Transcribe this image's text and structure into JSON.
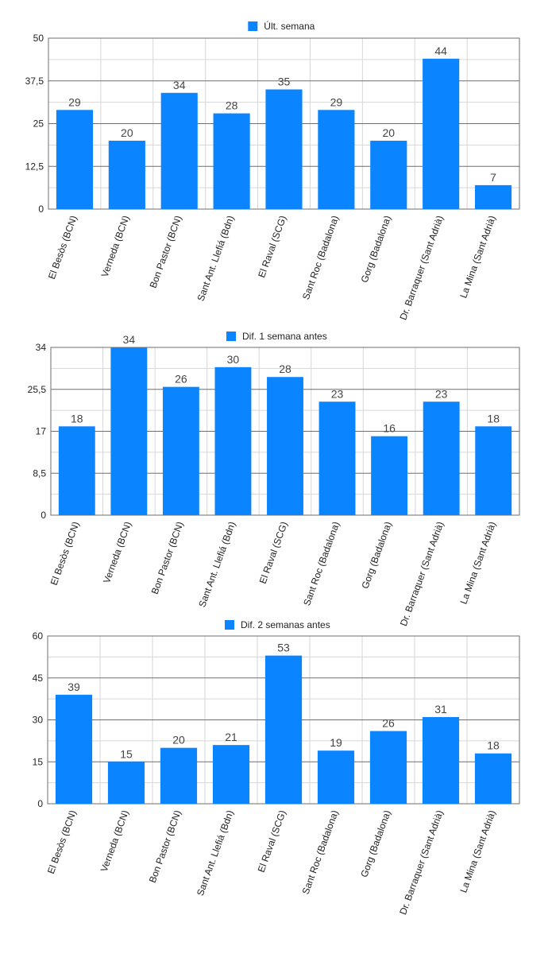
{
  "colors": {
    "bar": "#0a84ff",
    "legend": "#0a84ff",
    "grid_major": "#6e6e6e",
    "grid_minor": "#d6d6d6",
    "text": "#222222",
    "label": "#444444"
  },
  "chart_data": [
    {
      "type": "bar",
      "legend": "Últ. semana",
      "categories": [
        "El Besòs (BCN)",
        "Verneda (BCN)",
        "Bon Pastor (BCN)",
        "Sant Ant. Llefiá (Bdn)",
        "El Raval (SCG)",
        "Sant Roc (Badalona)",
        "Gorg (Badalona)",
        "Dr. Barraquer (Sant Adrià)",
        "La Mina (Sant Adrià)"
      ],
      "values": [
        29,
        20,
        34,
        28,
        35,
        29,
        20,
        44,
        7
      ],
      "yticks": [
        0,
        12.5,
        25,
        37.5,
        50
      ],
      "ytick_labels": [
        "0",
        "12,5",
        "25",
        "37,5",
        "50"
      ],
      "ylim": [
        0,
        50
      ],
      "legend_position": "top-center",
      "grid": true
    },
    {
      "type": "bar",
      "legend": "Dif.  1 semana antes",
      "categories": [
        "El Besòs (BCN)",
        "Verneda (BCN)",
        "Bon Pastor (BCN)",
        "Sant Ant. Llefiá (Bdn)",
        "El Raval (SCG)",
        "Sant Roc (Badalona)",
        "Gorg (Badalona)",
        "Dr. Barraquer (Sant Adrià)",
        "La Mina (Sant Adrià)"
      ],
      "values": [
        18,
        34,
        26,
        30,
        28,
        23,
        16,
        23,
        18
      ],
      "yticks": [
        0,
        8.5,
        17,
        25.5,
        34
      ],
      "ytick_labels": [
        "0",
        "8,5",
        "17",
        "25,5",
        "34"
      ],
      "ylim": [
        0,
        34
      ],
      "legend_position": "top-center",
      "grid": true
    },
    {
      "type": "bar",
      "legend": "Dif. 2 semanas antes",
      "categories": [
        "El Besòs (BCN)",
        "Verneda (BCN)",
        "Bon Pastor (BCN)",
        "Sant Ant. Llefiá (Bdn)",
        "El Raval (SCG)",
        "Sant Roc (Badalona)",
        "Gorg (Badalona)",
        "Dr. Barraquer (Sant Adrià)",
        "La Mina (Sant Adrià)"
      ],
      "values": [
        39,
        15,
        20,
        21,
        53,
        19,
        26,
        31,
        18
      ],
      "yticks": [
        0,
        15,
        30,
        45,
        60
      ],
      "ytick_labels": [
        "0",
        "15",
        "30",
        "45",
        "60"
      ],
      "ylim": [
        0,
        60
      ],
      "legend_position": "top-center",
      "grid": true
    }
  ]
}
